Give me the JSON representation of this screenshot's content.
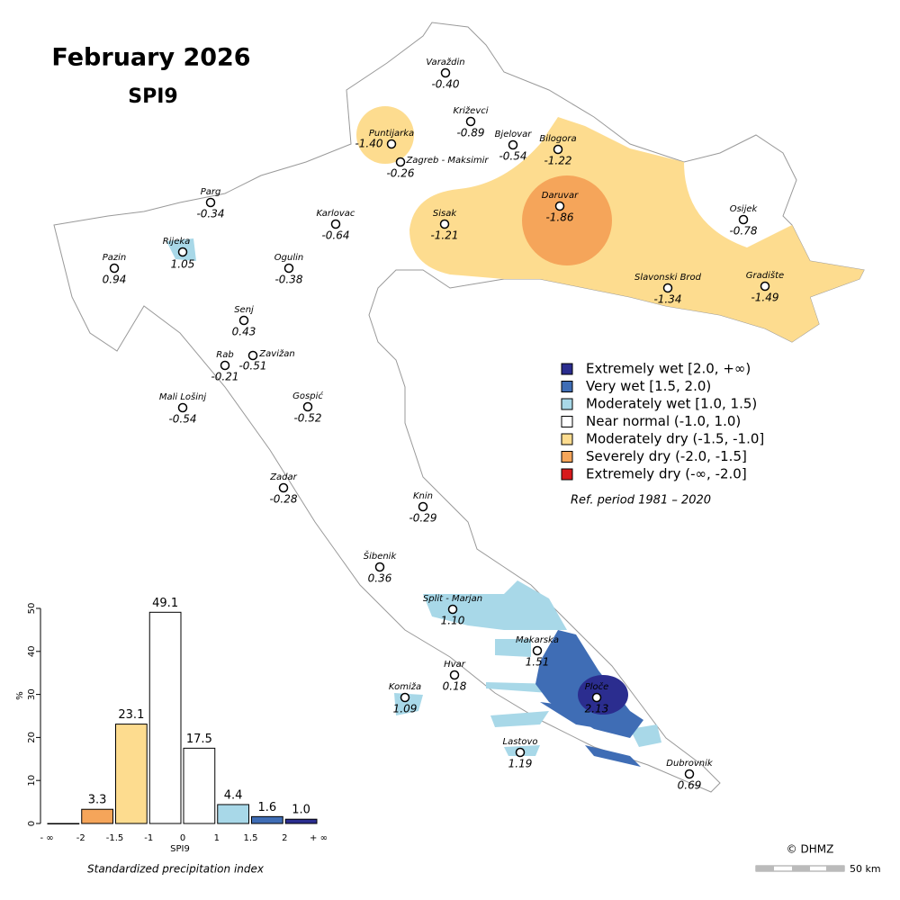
{
  "title": "February 2026",
  "subtitle": "SPI9",
  "stations": [
    {
      "name": "Varaždin",
      "value": "-0.40"
    },
    {
      "name": "Križevci",
      "value": "-0.89"
    },
    {
      "name": "Bjelovar",
      "value": "-0.54"
    },
    {
      "name": "Bilogora",
      "value": "-1.22"
    },
    {
      "name": "Puntijarka",
      "value": "-1.40"
    },
    {
      "name": "Zagreb - Maksimir",
      "value": "-0.26"
    },
    {
      "name": "Parg",
      "value": "-0.34"
    },
    {
      "name": "Karlovac",
      "value": "-0.64"
    },
    {
      "name": "Daruvar",
      "value": "-1.86"
    },
    {
      "name": "Sisak",
      "value": "-1.21"
    },
    {
      "name": "Osijek",
      "value": "-0.78"
    },
    {
      "name": "Rijeka",
      "value": "1.05"
    },
    {
      "name": "Pazin",
      "value": "0.94"
    },
    {
      "name": "Ogulin",
      "value": "-0.38"
    },
    {
      "name": "Slavonski Brod",
      "value": "-1.34"
    },
    {
      "name": "Gradište",
      "value": "-1.49"
    },
    {
      "name": "Senj",
      "value": "0.43"
    },
    {
      "name": "Zavižan",
      "value": "-0.51"
    },
    {
      "name": "Rab",
      "value": "-0.21"
    },
    {
      "name": "Mali Lošinj",
      "value": "-0.54"
    },
    {
      "name": "Gospić",
      "value": "-0.52"
    },
    {
      "name": "Zadar",
      "value": "-0.28"
    },
    {
      "name": "Knin",
      "value": "-0.29"
    },
    {
      "name": "Šibenik",
      "value": "0.36"
    },
    {
      "name": "Split - Marjan",
      "value": "1.10"
    },
    {
      "name": "Makarska",
      "value": "1.51"
    },
    {
      "name": "Hvar",
      "value": "0.18"
    },
    {
      "name": "Komiža",
      "value": "1.09"
    },
    {
      "name": "Ploče",
      "value": "2.13"
    },
    {
      "name": "Lastovo",
      "value": "1.19"
    },
    {
      "name": "Dubrovnik",
      "value": "0.69"
    }
  ],
  "legend": {
    "entries": [
      {
        "label": "Extremely wet [2.0, +∞)",
        "color": "#2b2d8f"
      },
      {
        "label": "Very wet [1.5, 2.0)",
        "color": "#3f6db5"
      },
      {
        "label": "Moderately wet [1.0, 1.5)",
        "color": "#a8d8e8"
      },
      {
        "label": "Near normal (-1.0, 1.0)",
        "color": "#ffffff"
      },
      {
        "label": "Moderately dry (-1.5, -1.0]",
        "color": "#fddc8f"
      },
      {
        "label": "Severely dry (-2.0, -1.5]",
        "color": "#f5a55a"
      },
      {
        "label": "Extremely dry (-∞, -2.0]",
        "color": "#d7191c"
      }
    ],
    "note": "Ref. period 1981 – 2020"
  },
  "chart_data": {
    "type": "histogram",
    "bins": [
      "- ∞",
      "-2",
      "-1.5",
      "-1",
      "0",
      "1",
      "1.5",
      "2",
      "+ ∞"
    ],
    "values": [
      0,
      3.3,
      23.1,
      49.1,
      17.5,
      4.4,
      1.6,
      1.0
    ],
    "value_labels": [
      null,
      "3.3",
      "23.1",
      "49.1",
      "17.5",
      "4.4",
      "1.6",
      "1.0"
    ],
    "colors": [
      "#d7191c",
      "#f5a55a",
      "#fddc8f",
      "#ffffff",
      "#ffffff",
      "#a8d8e8",
      "#3f6db5",
      "#2b2d8f"
    ],
    "ylim": [
      0,
      50
    ],
    "yticks": [
      0,
      10,
      20,
      30,
      40,
      50
    ],
    "xlabel": "SPI9",
    "ylabel": "%",
    "caption": "Standardized precipitation index"
  },
  "credit": "© DHMZ",
  "scale_label": "50 km"
}
